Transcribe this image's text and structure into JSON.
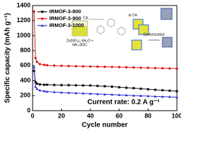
{
  "chart_data": {
    "type": "line",
    "xlabel": "Cycle number",
    "ylabel": "Specific capacity (mAh g⁻¹)",
    "annotation": "Current rate: 0.2 A g⁻¹",
    "xlim": [
      0,
      100
    ],
    "ylim": [
      0,
      1400
    ],
    "xticks": [
      0,
      20,
      40,
      60,
      80,
      100
    ],
    "yticks": [
      0,
      200,
      400,
      600,
      800,
      1000,
      1200,
      1400
    ],
    "x": [
      1,
      2,
      3,
      5,
      8,
      10,
      15,
      20,
      25,
      30,
      35,
      40,
      45,
      50,
      55,
      60,
      65,
      70,
      75,
      80,
      85,
      90,
      95,
      100
    ],
    "series": [
      {
        "name": "IRMOF-3-800",
        "color": "#111111",
        "marker": "square",
        "values": [
          530,
          380,
          360,
          350,
          345,
          345,
          342,
          340,
          340,
          338,
          336,
          335,
          330,
          325,
          320,
          312,
          305,
          300,
          292,
          285,
          278,
          272,
          266,
          260
        ]
      },
      {
        "name": "IRMOF-3-900",
        "color": "#e8141c",
        "marker": "circle",
        "values": [
          1320,
          700,
          650,
          620,
          610,
          605,
          600,
          598,
          595,
          592,
          590,
          588,
          586,
          584,
          582,
          580,
          578,
          575,
          572,
          570,
          567,
          565,
          562,
          560
        ]
      },
      {
        "name": "IRMOF-3-1000",
        "color": "#2b2bd6",
        "marker": "triangle",
        "values": [
          580,
          320,
          290,
          270,
          260,
          255,
          248,
          242,
          238,
          234,
          230,
          226,
          222,
          218,
          214,
          210,
          206,
          202,
          198,
          194,
          190,
          187,
          184,
          180
        ]
      }
    ],
    "inset": {
      "precursor": "Zn(NO₃)₂·6H₂O +",
      "linker": "NH₂-BDC",
      "labels": [
        "CA",
        "⊕ CA"
      ],
      "step": "Carbonization"
    }
  }
}
